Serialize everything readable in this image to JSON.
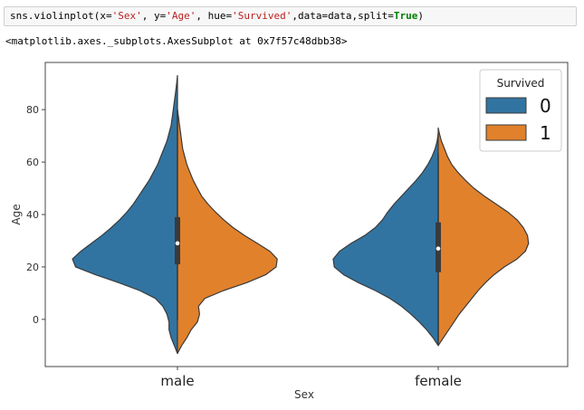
{
  "cell": {
    "code_parts": [
      {
        "t": "sns.violinplot(x=",
        "c": "fn"
      },
      {
        "t": "'Sex'",
        "c": "str"
      },
      {
        "t": ", y=",
        "c": "fn"
      },
      {
        "t": "'Age'",
        "c": "str"
      },
      {
        "t": ", hue=",
        "c": "fn"
      },
      {
        "t": "'Survived'",
        "c": "str"
      },
      {
        "t": ",data=data,split=",
        "c": "fn"
      },
      {
        "t": "True",
        "c": "kw"
      },
      {
        "t": ")",
        "c": "fn"
      }
    ],
    "output": "<matplotlib.axes._subplots.AxesSubplot at 0x7f57c48dbb38>"
  },
  "chart_data": {
    "type": "violin",
    "split": true,
    "categories": [
      "male",
      "female"
    ],
    "xlabel": "Sex",
    "ylabel": "Age",
    "ylim": [
      -18,
      98
    ],
    "yticks": [
      0,
      20,
      40,
      60,
      80
    ],
    "grid": false,
    "legend": {
      "title": "Survived",
      "placement": "top-right",
      "entries": [
        {
          "label": "0",
          "color": "#3274a1"
        },
        {
          "label": "1",
          "color": "#e1812c"
        }
      ]
    },
    "violins": [
      {
        "category": "male",
        "hue_0": {
          "y": [
            -13,
            -10,
            -7,
            -4,
            -1,
            2,
            5,
            8,
            11,
            14,
            17,
            20,
            23,
            26,
            29,
            32,
            35,
            38,
            41,
            44,
            47,
            50,
            53,
            56,
            59,
            62,
            65,
            68,
            71,
            74,
            77,
            80,
            83,
            86,
            89,
            93
          ],
          "w": [
            0.0,
            0.03,
            0.06,
            0.08,
            0.08,
            0.1,
            0.14,
            0.21,
            0.36,
            0.56,
            0.78,
            0.97,
            1.0,
            0.92,
            0.82,
            0.72,
            0.63,
            0.55,
            0.48,
            0.42,
            0.37,
            0.32,
            0.27,
            0.23,
            0.19,
            0.16,
            0.13,
            0.1,
            0.08,
            0.06,
            0.05,
            0.04,
            0.03,
            0.02,
            0.01,
            0.0
          ]
        },
        "hue_1": {
          "y": [
            -13,
            -10,
            -7,
            -4,
            -1,
            2,
            5,
            8,
            11,
            14,
            17,
            20,
            23,
            26,
            29,
            32,
            35,
            38,
            41,
            44,
            47,
            50,
            53,
            56,
            59,
            62,
            65,
            68,
            71,
            74,
            77,
            80
          ],
          "w": [
            0.0,
            0.04,
            0.09,
            0.13,
            0.19,
            0.21,
            0.2,
            0.26,
            0.44,
            0.66,
            0.84,
            0.94,
            0.95,
            0.88,
            0.76,
            0.64,
            0.53,
            0.44,
            0.36,
            0.29,
            0.23,
            0.19,
            0.15,
            0.12,
            0.09,
            0.07,
            0.05,
            0.04,
            0.03,
            0.02,
            0.01,
            0.0
          ]
        },
        "box": {
          "q1": 21,
          "median": 29,
          "q3": 39,
          "whisker_low": 0,
          "whisker_high": 80
        }
      },
      {
        "category": "female",
        "hue_0": {
          "y": [
            -10,
            -7,
            -4,
            -1,
            2,
            5,
            8,
            11,
            14,
            17,
            20,
            23,
            26,
            29,
            32,
            35,
            38,
            41,
            44,
            47,
            50,
            53,
            56,
            59,
            62,
            65,
            68,
            71
          ],
          "w": [
            0.0,
            0.05,
            0.11,
            0.18,
            0.26,
            0.35,
            0.46,
            0.6,
            0.76,
            0.9,
            0.99,
            1.0,
            0.94,
            0.83,
            0.7,
            0.6,
            0.53,
            0.48,
            0.42,
            0.35,
            0.28,
            0.21,
            0.15,
            0.1,
            0.06,
            0.03,
            0.01,
            0.0
          ]
        },
        "hue_1": {
          "y": [
            -10,
            -7,
            -4,
            -1,
            2,
            5,
            8,
            11,
            14,
            17,
            20,
            23,
            26,
            29,
            32,
            35,
            38,
            41,
            44,
            47,
            50,
            53,
            56,
            59,
            62,
            65,
            68,
            71,
            73
          ],
          "w": [
            0.0,
            0.05,
            0.1,
            0.15,
            0.2,
            0.26,
            0.32,
            0.38,
            0.45,
            0.53,
            0.63,
            0.75,
            0.83,
            0.86,
            0.85,
            0.81,
            0.75,
            0.66,
            0.55,
            0.44,
            0.34,
            0.26,
            0.19,
            0.13,
            0.09,
            0.06,
            0.03,
            0.01,
            0.0
          ]
        },
        "box": {
          "q1": 18,
          "median": 27,
          "q3": 37,
          "whisker_low": -9,
          "whisker_high": 63
        }
      }
    ]
  }
}
